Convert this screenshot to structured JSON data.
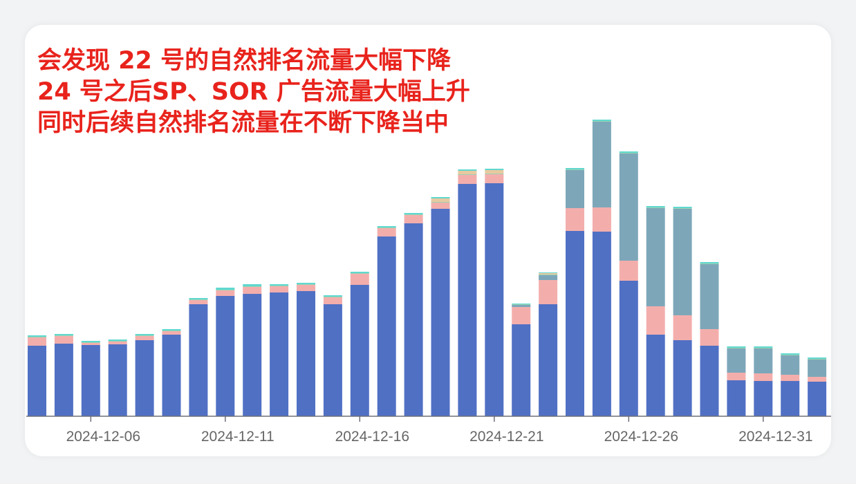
{
  "annotation": {
    "line1": "会发现 22 号的自然排名流量大幅下降",
    "line2": "24 号之后SP、SOR 广告流量大幅上升",
    "line3": "同时后续自然排名流量在不断下降当中"
  },
  "chart_data": {
    "type": "bar",
    "stacked": true,
    "title": "",
    "xlabel": "",
    "ylabel": "",
    "grid": false,
    "legend": "none",
    "ylim": [
      0,
      440
    ],
    "tick_labels": [
      "2024-12-06",
      "2024-12-11",
      "2024-12-16",
      "2024-12-21",
      "2024-12-26",
      "2024-12-31"
    ],
    "categories": [
      "2024-12-04",
      "2024-12-05",
      "2024-12-06",
      "2024-12-07",
      "2024-12-08",
      "2024-12-09",
      "2024-12-10",
      "2024-12-11",
      "2024-12-12",
      "2024-12-13",
      "2024-12-14",
      "2024-12-15",
      "2024-12-16",
      "2024-12-17",
      "2024-12-18",
      "2024-12-19",
      "2024-12-20",
      "2024-12-21",
      "2024-12-22",
      "2024-12-23",
      "2024-12-24",
      "2024-12-25",
      "2024-12-26",
      "2024-12-27",
      "2024-12-28",
      "2024-12-29",
      "2024-12-30",
      "2024-12-31",
      "2025-01-01",
      "2025-01-02"
    ],
    "series": [
      {
        "color": "#5070c4",
        "values": [
          102,
          105,
          103,
          104,
          110,
          118,
          162,
          174,
          177,
          179,
          181,
          162,
          190,
          260,
          279,
          300,
          336,
          337,
          133,
          162,
          268,
          267,
          196,
          118,
          110,
          102,
          52,
          51,
          51,
          50
        ]
      },
      {
        "color": "#f3aeac",
        "values": [
          12,
          11,
          3,
          4,
          6,
          5,
          6,
          8,
          10,
          9,
          9,
          10,
          16,
          12,
          12,
          9,
          13,
          13,
          25,
          35,
          33,
          35,
          29,
          41,
          36,
          24,
          11,
          11,
          9,
          7
        ]
      },
      {
        "color": "#7da7b9",
        "values": [
          0,
          0,
          0,
          0,
          0,
          0,
          0,
          0,
          0,
          0,
          0,
          0,
          0,
          0,
          0,
          0,
          0,
          0,
          3,
          7,
          55,
          124,
          155,
          142,
          154,
          94,
          35,
          36,
          28,
          25
        ]
      },
      {
        "color": "#9bd3b3",
        "values": [
          1,
          1,
          1,
          1,
          1,
          1,
          1,
          1,
          1,
          1,
          1,
          1,
          1,
          1,
          1,
          1,
          1,
          1,
          1,
          1,
          1,
          1,
          1,
          1,
          1,
          1,
          1,
          1,
          1,
          1
        ]
      },
      {
        "color": "#e9c9a0",
        "values": [
          0,
          0,
          0,
          0,
          0,
          0,
          0,
          0,
          0,
          0,
          0,
          0,
          0,
          0,
          0,
          5,
          5,
          5,
          0,
          2,
          0,
          0,
          0,
          0,
          0,
          0,
          0,
          0,
          0,
          0
        ]
      },
      {
        "color": "#5fd8cf",
        "values": [
          2,
          2,
          2,
          2,
          2,
          2,
          2,
          3,
          3,
          2,
          2,
          2,
          2,
          2,
          2,
          2,
          2,
          2,
          1,
          1,
          2,
          2,
          2,
          2,
          2,
          2,
          2,
          2,
          2,
          2
        ]
      }
    ]
  }
}
